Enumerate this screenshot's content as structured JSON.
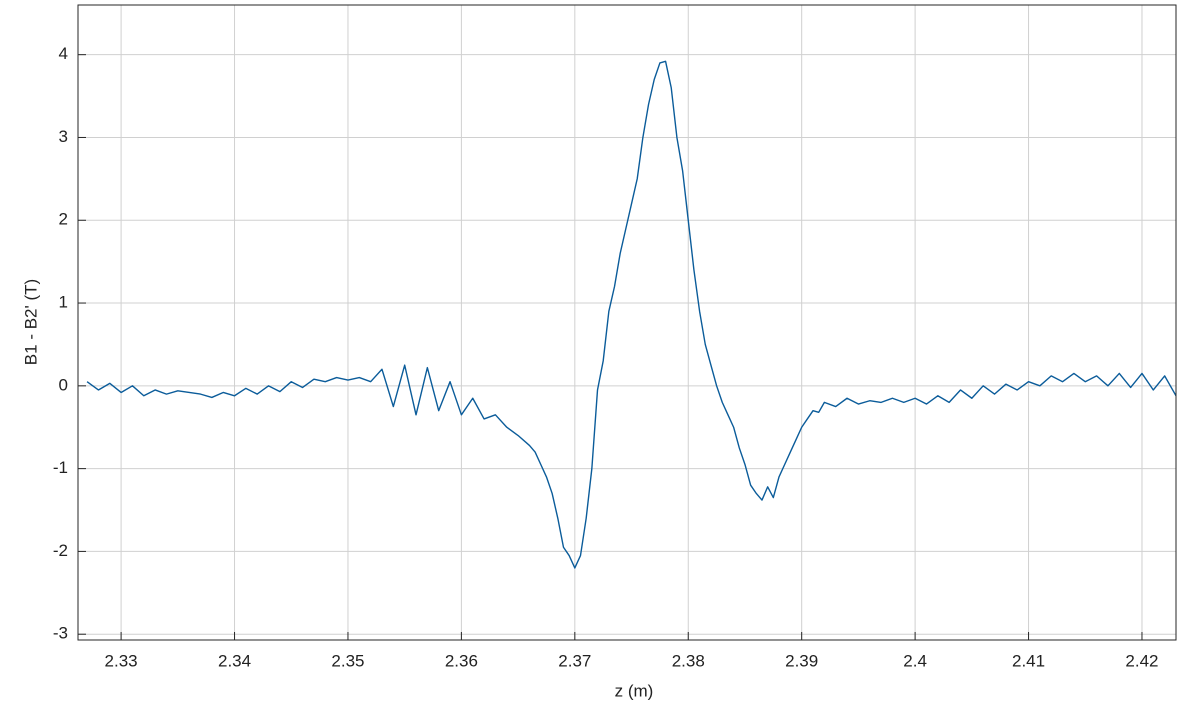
{
  "chart_data": {
    "type": "line",
    "x_label": "z (m)",
    "y_label": "B1 - B2' (T)",
    "x": [
      2.327,
      2.328,
      2.329,
      2.33,
      2.331,
      2.332,
      2.333,
      2.334,
      2.335,
      2.336,
      2.337,
      2.338,
      2.339,
      2.34,
      2.341,
      2.342,
      2.343,
      2.344,
      2.345,
      2.346,
      2.347,
      2.348,
      2.349,
      2.35,
      2.351,
      2.352,
      2.353,
      2.354,
      2.355,
      2.356,
      2.357,
      2.358,
      2.359,
      2.36,
      2.361,
      2.362,
      2.363,
      2.364,
      2.365,
      2.366,
      2.3665,
      2.367,
      2.3675,
      2.368,
      2.3685,
      2.369,
      2.3695,
      2.37,
      2.3705,
      2.371,
      2.3715,
      2.372,
      2.3725,
      2.373,
      2.3735,
      2.374,
      2.3745,
      2.375,
      2.3755,
      2.376,
      2.3765,
      2.377,
      2.3775,
      2.378,
      2.3785,
      2.379,
      2.3795,
      2.38,
      2.3805,
      2.381,
      2.3815,
      2.382,
      2.3825,
      2.383,
      2.3835,
      2.384,
      2.3845,
      2.385,
      2.3855,
      2.386,
      2.3865,
      2.387,
      2.3875,
      2.388,
      2.3885,
      2.389,
      2.3895,
      2.39,
      2.3905,
      2.391,
      2.3915,
      2.392,
      2.393,
      2.394,
      2.395,
      2.396,
      2.397,
      2.398,
      2.399,
      2.4,
      2.401,
      2.402,
      2.403,
      2.404,
      2.405,
      2.406,
      2.407,
      2.408,
      2.409,
      2.41,
      2.411,
      2.412,
      2.413,
      2.414,
      2.415,
      2.416,
      2.417,
      2.418,
      2.419,
      2.42,
      2.421,
      2.422,
      2.423
    ],
    "values": [
      0.05,
      -0.05,
      0.03,
      -0.08,
      0.0,
      -0.12,
      -0.05,
      -0.1,
      -0.06,
      -0.08,
      -0.1,
      -0.14,
      -0.08,
      -0.12,
      -0.03,
      -0.1,
      0.0,
      -0.07,
      0.05,
      -0.02,
      0.08,
      0.05,
      0.1,
      0.07,
      0.1,
      0.05,
      0.2,
      -0.25,
      0.25,
      -0.35,
      0.22,
      -0.3,
      0.05,
      -0.35,
      -0.15,
      -0.4,
      -0.35,
      -0.5,
      -0.6,
      -0.72,
      -0.8,
      -0.95,
      -1.1,
      -1.3,
      -1.6,
      -1.95,
      -2.05,
      -2.2,
      -2.05,
      -1.6,
      -1.0,
      -0.05,
      0.3,
      0.9,
      1.2,
      1.6,
      1.9,
      2.2,
      2.5,
      3.0,
      3.4,
      3.7,
      3.9,
      3.92,
      3.6,
      3.0,
      2.6,
      2.0,
      1.4,
      0.9,
      0.5,
      0.25,
      0.0,
      -0.2,
      -0.35,
      -0.5,
      -0.75,
      -0.95,
      -1.2,
      -1.3,
      -1.38,
      -1.22,
      -1.35,
      -1.1,
      -0.95,
      -0.8,
      -0.65,
      -0.5,
      -0.4,
      -0.3,
      -0.32,
      -0.2,
      -0.25,
      -0.15,
      -0.22,
      -0.18,
      -0.2,
      -0.15,
      -0.2,
      -0.15,
      -0.22,
      -0.12,
      -0.2,
      -0.05,
      -0.15,
      0.0,
      -0.1,
      0.02,
      -0.05,
      0.05,
      0.0,
      0.12,
      0.05,
      0.15,
      0.05,
      0.12,
      0.0,
      0.15,
      -0.02,
      0.15,
      -0.05,
      0.12,
      -0.12
    ],
    "color": "#0b5c9a",
    "xlim": [
      2.3262,
      2.423
    ],
    "ylim": [
      -3.07,
      4.6
    ],
    "xticks": [
      2.33,
      2.34,
      2.35,
      2.36,
      2.37,
      2.38,
      2.39,
      2.4,
      2.41,
      2.42
    ],
    "yticks": [
      -3,
      -2,
      -1,
      0,
      1,
      2,
      3,
      4
    ],
    "grid": true
  }
}
